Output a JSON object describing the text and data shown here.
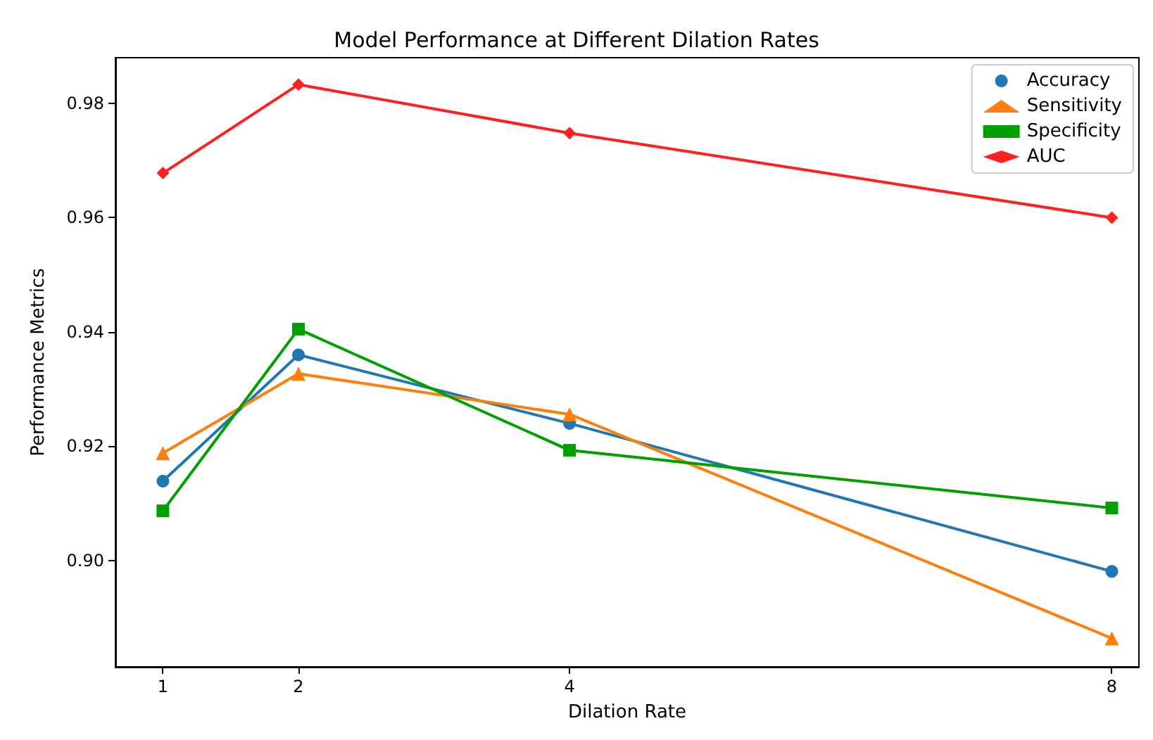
{
  "chart_data": {
    "type": "line",
    "title": "Model Performance at Different Dilation Rates",
    "xlabel": "Dilation Rate",
    "ylabel": "Performance Metrics",
    "x": [
      1,
      2,
      4,
      8
    ],
    "xlim": [
      0.65,
      8.2
    ],
    "xticks": [
      1,
      2,
      4,
      8
    ],
    "ylim": [
      0.8814,
      0.988
    ],
    "yticks": [
      {
        "value": 0.9,
        "label": "0.90"
      },
      {
        "value": 0.92,
        "label": "0.92"
      },
      {
        "value": 0.94,
        "label": "0.94"
      },
      {
        "value": 0.96,
        "label": "0.96"
      },
      {
        "value": 0.98,
        "label": "0.98"
      }
    ],
    "grid": false,
    "legend": "top right",
    "line_style": "solid",
    "series": [
      {
        "name": "Accuracy",
        "color": "#1f77b4",
        "marker": "circle",
        "values": [
          0.9139,
          0.936,
          0.924,
          0.8981
        ]
      },
      {
        "name": "Sensitivity",
        "color": "#ff7f0e",
        "marker": "triangle",
        "values": [
          0.9188,
          0.9327,
          0.9256,
          0.8864
        ]
      },
      {
        "name": "Specificity",
        "color": "#00a000",
        "marker": "square",
        "values": [
          0.9087,
          0.9405,
          0.9193,
          0.9092
        ]
      },
      {
        "name": "AUC",
        "color": "#ff2020",
        "marker": "diamond",
        "values": [
          0.9678,
          0.9833,
          0.9748,
          0.96
        ]
      }
    ]
  }
}
